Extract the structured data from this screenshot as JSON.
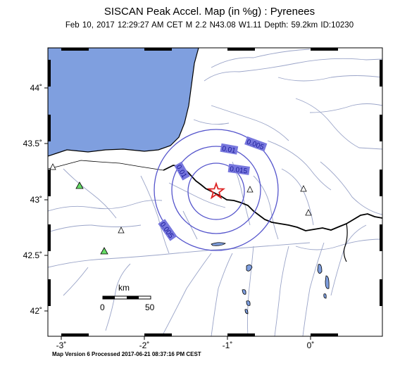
{
  "header": {
    "title": "SISCAN Peak Accel. Map (in %g) : Pyrenees",
    "subtitle": "Feb 10, 2017 12:29:27 AM CET   M 2.2   N43.08 W1.11   Depth: 59.2km   ID:10230"
  },
  "axes": {
    "lat_ticks": [
      "44˚",
      "43.5˚",
      "43˚",
      "42.5˚",
      "42˚"
    ],
    "lon_ticks": [
      "-3˚",
      "-2˚",
      "-1˚",
      "0˚"
    ]
  },
  "contours": {
    "labels": [
      "0.005",
      "0.01",
      "0.015",
      "0.01",
      "0.005"
    ],
    "color": "#5555cc",
    "label_bg": "#7777dd"
  },
  "colors": {
    "sea": "#7f9fdf",
    "border": "#000000",
    "river": "#9aa4c8"
  },
  "scale_bar": {
    "unit": "km",
    "min_label": "0",
    "max_label": "50"
  },
  "epicenter": {
    "symbol": "star-icon",
    "color": "#dd2222"
  },
  "footer": "Map Version 6 Processed 2017-06-21 08:37:16 PM CEST"
}
